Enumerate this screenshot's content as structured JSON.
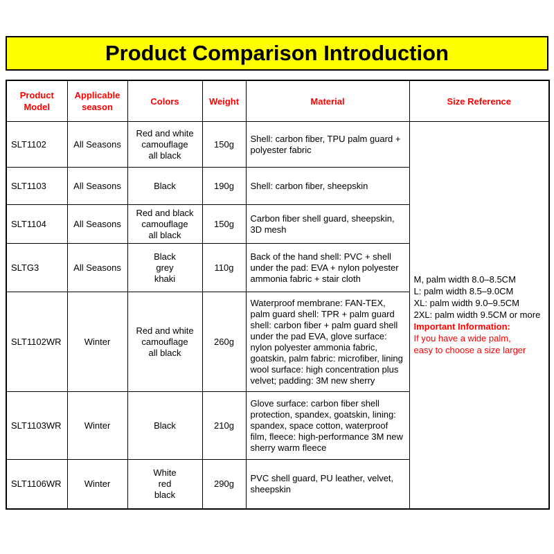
{
  "banner": {
    "title": "Product Comparison Introduction",
    "background_color": "#FFFF00",
    "text_color": "#000000"
  },
  "colors": {
    "header_text": "#FF0000",
    "important_text": "#FF0000",
    "border": "#000000",
    "body_text": "#000000"
  },
  "table": {
    "headers": {
      "model": "Product\nModel",
      "season": "Applicable\nseason",
      "colors": "Colors",
      "weight": "Weight",
      "material": "Material",
      "size_reference": "Size Reference"
    },
    "rows": [
      {
        "model": "SLT1102",
        "season": "All Seasons",
        "colors": "Red and white\ncamouflage\nall black",
        "weight": "150g",
        "material": "Shell: carbon fiber, TPU palm guard + polyester fabric"
      },
      {
        "model": "SLT1103",
        "season": "All Seasons",
        "colors": "Black",
        "weight": "190g",
        "material": "Shell: carbon fiber, sheepskin"
      },
      {
        "model": "SLT1104",
        "season": "All Seasons",
        "colors": "Red and black\ncamouflage\nall black",
        "weight": "150g",
        "material": "Carbon fiber shell guard, sheepskin, 3D mesh"
      },
      {
        "model": "SLTG3",
        "season": "All Seasons",
        "colors": "Black\ngrey\nkhaki",
        "weight": "110g",
        "material": "Back of the hand shell: PVC + shell under the pad: EVA + nylon polyester ammonia fabric + stair cloth"
      },
      {
        "model": "SLT1102WR",
        "season": "Winter",
        "colors": "Red and white\ncamouflage\nall black",
        "weight": "260g",
        "material": "Waterproof membrane: FAN-TEX, palm guard shell: TPR + palm guard shell: carbon fiber + palm guard shell under the pad EVA, glove surface: nylon polyester ammonia fabric, goatskin, palm fabric: microfiber, lining wool surface: high concentration plus velvet; padding: 3M new sherry"
      },
      {
        "model": "SLT1103WR",
        "season": "Winter",
        "colors": "Black",
        "weight": "210g",
        "material": "Glove surface: carbon fiber shell protection, spandex, goatskin, lining: spandex, space cotton, waterproof film, fleece: high-performance 3M new sherry warm fleece"
      },
      {
        "model": "SLT1106WR",
        "season": "Winter",
        "colors": "White\nred\nblack",
        "weight": "290g",
        "material": "PVC shell guard, PU leather, velvet, sheepskin"
      }
    ],
    "size_reference": {
      "sizes": "M, palm width 8.0–8.5CM\nL: palm width 8.5–9.0CM\nXL: palm width 9.0–9.5CM\n2XL: palm width 9.5CM or more",
      "important_label": "Important Information:",
      "important_note": "If you have a wide palm,\neasy to choose a size larger"
    }
  }
}
